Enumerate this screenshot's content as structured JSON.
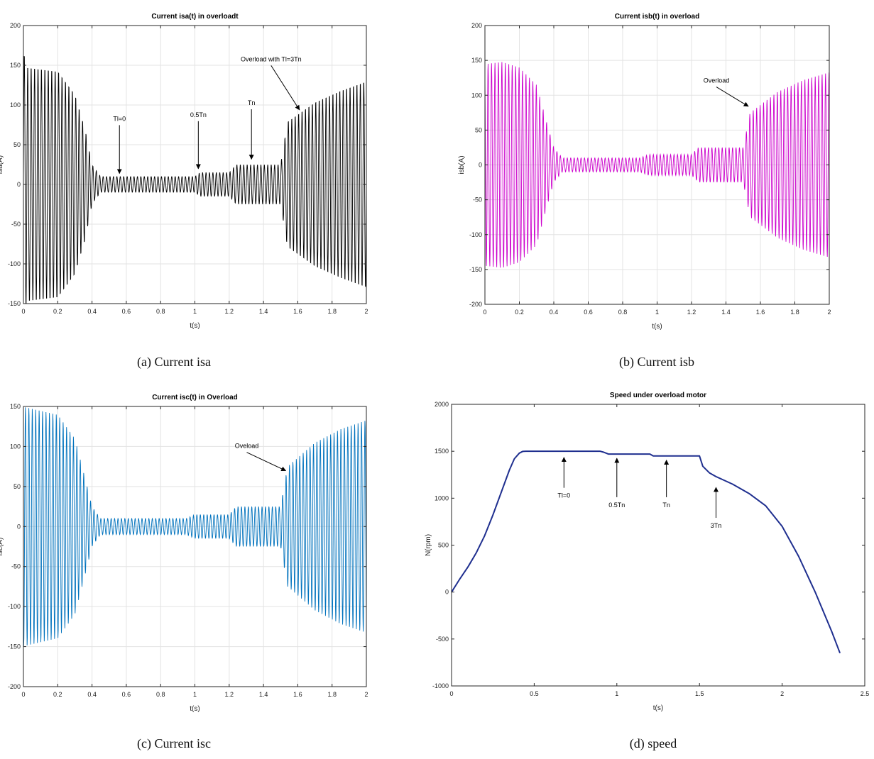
{
  "captions": {
    "a": "(a) Current isa",
    "b": "(b) Current isb",
    "c": "(c) Current isc",
    "d": "(d) speed"
  },
  "chart_data": [
    {
      "id": "a",
      "type": "line",
      "title": "Current isa(t) in overloadt",
      "xlabel": "t(s)",
      "ylabel": "isa(A)",
      "xlim": [
        0,
        2
      ],
      "ylim": [
        -150,
        200
      ],
      "xticks": [
        0,
        0.2,
        0.4,
        0.6,
        0.8,
        1,
        1.2,
        1.4,
        1.6,
        1.8,
        2
      ],
      "xticklabels": [
        "0",
        "0.2",
        "0.4",
        "0.6",
        "0.8",
        "1",
        "1.2",
        "1.4",
        "1.6",
        "1.8",
        "2"
      ],
      "yticks": [
        -150,
        -100,
        -50,
        0,
        50,
        100,
        150,
        200
      ],
      "yticklabels": [
        "-150",
        "-100",
        "-50",
        "0",
        "50",
        "100",
        "150",
        "200"
      ],
      "grid": true,
      "color": "#000000",
      "frequency_hz": 50,
      "series": [
        {
          "envelope_t": [
            0,
            0.02,
            0.2,
            0.3,
            0.36,
            0.4,
            0.45,
            1.0,
            1.03,
            1.2,
            1.24,
            1.5,
            1.54,
            1.7,
            1.85,
            2.0
          ],
          "envelope_amp": [
            170,
            150,
            145,
            115,
            70,
            25,
            10,
            10,
            15,
            15,
            25,
            25,
            80,
            105,
            120,
            132
          ]
        }
      ],
      "annotations": [
        {
          "text": "Tl=0",
          "x": 0.56,
          "y": 12,
          "label_y": 80
        },
        {
          "text": "0.5Tn",
          "x": 1.02,
          "y": 18,
          "label_y": 85
        },
        {
          "text": "Tn",
          "x": 1.33,
          "y": 30,
          "label_y": 100
        },
        {
          "text": "Overload with Tl=3Tn",
          "x": 1.61,
          "y": 92,
          "label_y": 155
        }
      ]
    },
    {
      "id": "b",
      "type": "line",
      "title": "Current isb(t) in overload",
      "xlabel": "t(s)",
      "ylabel": "isb(A)",
      "xlim": [
        0,
        2
      ],
      "ylim": [
        -200,
        200
      ],
      "xticks": [
        0,
        0.2,
        0.4,
        0.6,
        0.8,
        1,
        1.2,
        1.4,
        1.6,
        1.8,
        2
      ],
      "xticklabels": [
        "0",
        "0.2",
        "0.4",
        "0.6",
        "0.8",
        "1",
        "1.2",
        "1.4",
        "1.6",
        "1.8",
        "2"
      ],
      "yticks": [
        -200,
        -150,
        -100,
        -50,
        0,
        50,
        100,
        150,
        200
      ],
      "yticklabels": [
        "-200",
        "-150",
        "-100",
        "-50",
        "0",
        "50",
        "100",
        "150",
        "200"
      ],
      "grid": true,
      "color": "#cc00cc",
      "frequency_hz": 50,
      "series": [
        {
          "envelope_t": [
            0,
            0.1,
            0.2,
            0.3,
            0.36,
            0.4,
            0.45,
            0.9,
            0.95,
            1.2,
            1.24,
            1.5,
            1.54,
            1.7,
            1.85,
            2.0
          ],
          "envelope_amp": [
            145,
            148,
            140,
            115,
            60,
            25,
            10,
            10,
            15,
            15,
            25,
            25,
            75,
            105,
            122,
            133
          ]
        }
      ],
      "annotations": [
        {
          "text": "Overload",
          "x": 1.53,
          "y": 82,
          "label_y": 118
        }
      ]
    },
    {
      "id": "c",
      "type": "line",
      "title": "Current isc(t) in Overload",
      "xlabel": "t(s)",
      "ylabel": "isc(A)",
      "xlim": [
        0,
        2
      ],
      "ylim": [
        -200,
        150
      ],
      "xticks": [
        0,
        0.2,
        0.4,
        0.6,
        0.8,
        1,
        1.2,
        1.4,
        1.6,
        1.8,
        2
      ],
      "xticklabels": [
        "0",
        "0.2",
        "0.4",
        "0.6",
        "0.8",
        "1",
        "1.2",
        "1.4",
        "1.6",
        "1.8",
        "2"
      ],
      "yticks": [
        -200,
        -150,
        -100,
        -50,
        0,
        50,
        100,
        150
      ],
      "yticklabels": [
        "-200",
        "-150",
        "-100",
        "-50",
        "0",
        "50",
        "100",
        "150"
      ],
      "grid": true,
      "color": "#0072bd",
      "frequency_hz": 50,
      "series": [
        {
          "envelope_t": [
            0,
            0.1,
            0.2,
            0.3,
            0.36,
            0.4,
            0.45,
            0.95,
            1.0,
            1.2,
            1.24,
            1.5,
            1.54,
            1.7,
            1.85,
            2.0
          ],
          "envelope_amp": [
            150,
            145,
            140,
            110,
            60,
            25,
            10,
            10,
            15,
            15,
            25,
            25,
            75,
            105,
            122,
            133
          ]
        }
      ],
      "annotations": [
        {
          "text": "Oveload",
          "x": 1.53,
          "y": 68,
          "label_y": 98
        }
      ]
    },
    {
      "id": "d",
      "type": "line",
      "title": "Speed under overload motor",
      "xlabel": "t(s)",
      "ylabel": "N(rpm)",
      "xlim": [
        0,
        2.5
      ],
      "ylim": [
        -1000,
        2000
      ],
      "xticks": [
        0,
        0.5,
        1,
        1.5,
        2,
        2.5
      ],
      "xticklabels": [
        "0",
        "0.5",
        "1",
        "1.5",
        "2",
        "2.5"
      ],
      "yticks": [
        -1000,
        -500,
        0,
        500,
        1000,
        1500,
        2000
      ],
      "yticklabels": [
        "-1000",
        "-500",
        "0",
        "500",
        "1000",
        "1500",
        "2000"
      ],
      "grid": false,
      "color": "#1f2f8f",
      "series": [
        {
          "x": [
            0,
            0.05,
            0.1,
            0.15,
            0.2,
            0.25,
            0.3,
            0.35,
            0.38,
            0.41,
            0.43,
            0.45,
            0.9,
            0.92,
            0.95,
            1.2,
            1.22,
            1.5,
            1.52,
            1.56,
            1.6,
            1.7,
            1.8,
            1.9,
            2.0,
            2.1,
            2.2,
            2.3,
            2.35
          ],
          "y": [
            0,
            140,
            270,
            420,
            600,
            820,
            1060,
            1300,
            1420,
            1480,
            1498,
            1500,
            1500,
            1490,
            1470,
            1470,
            1450,
            1450,
            1340,
            1270,
            1230,
            1150,
            1050,
            920,
            700,
            380,
            0,
            -420,
            -650
          ]
        }
      ],
      "annotations": [
        {
          "text": "Tl=0",
          "x": 0.68,
          "y": 1450,
          "label_y": 1020
        },
        {
          "text": "0.5Tn",
          "x": 1.0,
          "y": 1440,
          "label_y": 920
        },
        {
          "text": "Tn",
          "x": 1.3,
          "y": 1420,
          "label_y": 920
        },
        {
          "text": "3Tn",
          "x": 1.6,
          "y": 1130,
          "label_y": 700
        }
      ]
    }
  ]
}
